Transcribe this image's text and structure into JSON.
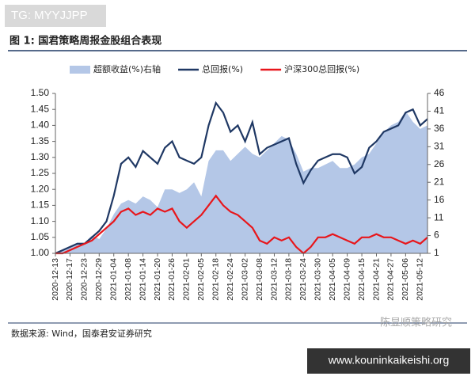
{
  "chart_data": {
    "type": "line",
    "title": "图 1: 国君策略周报金股组合表现",
    "source": "数据来源: Wind，国泰君安证券研究",
    "categories": [
      "2020-12-13",
      null,
      "2020-12-17",
      null,
      "2020-12-23",
      null,
      "2020-12-29",
      null,
      "2021-01-04",
      null,
      "2021-01-08",
      null,
      "2021-01-14",
      null,
      "2021-01-20",
      null,
      "2021-01-26",
      null,
      "2021-02-01",
      null,
      "2021-02-05",
      null,
      "2021-02-18",
      null,
      "2021-02-24",
      null,
      "2021-03-02",
      null,
      "2021-03-08",
      null,
      "2021-03-12",
      null,
      "2021-03-18",
      null,
      "2021-03-24",
      null,
      "2021-03-30",
      null,
      "2021-04-05",
      null,
      "2021-04-09",
      null,
      "2021-04-15",
      null,
      "2021-04-21",
      null,
      "2021-04-27",
      null,
      "2021-05-06",
      null,
      "2021-05-12",
      null
    ],
    "series": [
      {
        "name": "超额收益(%)右轴",
        "color": "#b4c7e7",
        "axis": "y2",
        "kind": "area",
        "values": [
          1,
          2,
          3,
          4,
          4,
          6,
          5,
          8,
          12,
          15,
          16,
          15,
          17,
          16,
          14,
          19,
          19,
          18,
          19,
          21,
          17,
          27,
          30,
          30,
          27,
          29,
          31,
          29,
          28,
          30,
          32,
          34,
          33,
          29,
          24,
          25,
          25,
          26,
          27,
          25,
          25,
          26,
          28,
          29,
          32,
          35,
          37,
          38,
          41,
          38,
          36,
          37
        ]
      },
      {
        "name": "总回报(%)",
        "color": "#1f3864",
        "kind": "line",
        "values": [
          1.0,
          1.01,
          1.02,
          1.03,
          1.03,
          1.05,
          1.07,
          1.1,
          1.18,
          1.28,
          1.3,
          1.27,
          1.32,
          1.3,
          1.28,
          1.33,
          1.35,
          1.3,
          1.29,
          1.28,
          1.3,
          1.4,
          1.47,
          1.44,
          1.38,
          1.4,
          1.35,
          1.41,
          1.31,
          1.33,
          1.34,
          1.35,
          1.36,
          1.28,
          1.22,
          1.26,
          1.29,
          1.3,
          1.31,
          1.31,
          1.3,
          1.25,
          1.27,
          1.33,
          1.35,
          1.38,
          1.39,
          1.4,
          1.44,
          1.45,
          1.4,
          1.42
        ]
      },
      {
        "name": "沪深300总回报(%)",
        "color": "#e8161b",
        "kind": "line",
        "values": [
          1.0,
          1.0,
          1.01,
          1.02,
          1.03,
          1.04,
          1.06,
          1.08,
          1.1,
          1.13,
          1.14,
          1.12,
          1.13,
          1.12,
          1.14,
          1.13,
          1.14,
          1.1,
          1.08,
          1.1,
          1.12,
          1.15,
          1.18,
          1.15,
          1.13,
          1.12,
          1.1,
          1.08,
          1.04,
          1.03,
          1.05,
          1.04,
          1.05,
          1.02,
          1.0,
          1.02,
          1.05,
          1.05,
          1.06,
          1.05,
          1.04,
          1.03,
          1.05,
          1.05,
          1.06,
          1.05,
          1.05,
          1.04,
          1.03,
          1.04,
          1.03,
          1.05
        ]
      }
    ],
    "ylim": [
      1.0,
      1.5
    ],
    "yticks": [
      {
        "value": 1.0,
        "label": "1.00"
      },
      {
        "value": 1.05,
        "label": "1.05"
      },
      {
        "value": 1.1,
        "label": "1.10"
      },
      {
        "value": 1.15,
        "label": "1.15"
      },
      {
        "value": 1.2,
        "label": "1.20"
      },
      {
        "value": 1.25,
        "label": "1.25"
      },
      {
        "value": 1.3,
        "label": "1.30"
      },
      {
        "value": 1.35,
        "label": "1.35"
      },
      {
        "value": 1.4,
        "label": "1.40"
      },
      {
        "value": 1.45,
        "label": "1.45"
      },
      {
        "value": 1.5,
        "label": "1.50"
      }
    ],
    "y2lim": [
      1,
      46
    ],
    "y2ticks": [
      1,
      6,
      11,
      16,
      21,
      26,
      31,
      36,
      41,
      46
    ],
    "grid": false
  },
  "watermarks": {
    "tag": "TG: MYYJJPP",
    "brand": "陈显顺策略研究",
    "site": "www.kouninkaikeishi.org"
  }
}
